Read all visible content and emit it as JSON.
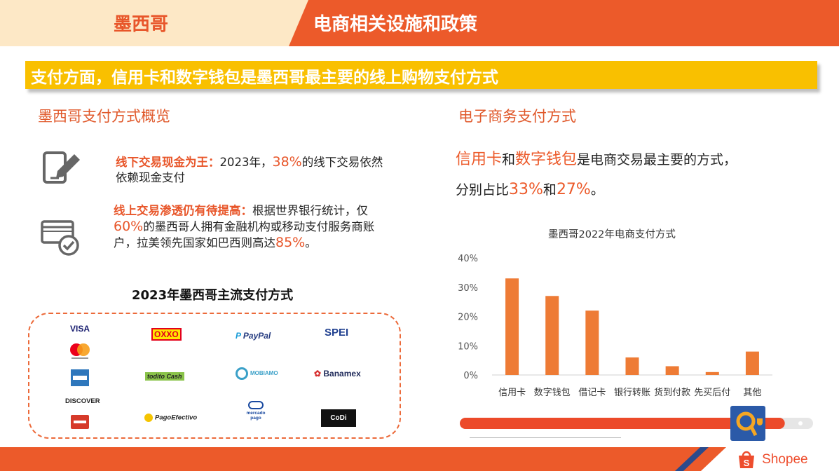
{
  "header": {
    "country": "墨西哥",
    "title": "电商相关设施和政策"
  },
  "banner": "支付方面，信用卡和数字钱包是墨西哥最主要的线上购物支付方式",
  "left": {
    "section_title": "墨西哥支付方式概览",
    "item1": {
      "highlight": "线下交易现金为王：",
      "t1": "2023年，",
      "num": "38%",
      "t2": "的线下交易依然依赖现金支付"
    },
    "item2": {
      "highlight": "线上交易渗透仍有待提高：",
      "t1": "根据世界银行统计，仅",
      "num1": "60%",
      "t2": "的墨西哥人拥有金融机构或移动支付服务商账户，拉美领先国家如巴西则高达",
      "num2": "85%",
      "t3": "。"
    },
    "methods_title": "2023年墨西哥主流支付方式",
    "logos": {
      "visa": "VISA",
      "oxxo": "OXXO",
      "paypal": "PayPal",
      "spei": "SPEI",
      "todito": "todito Cash",
      "mobiamo": "MOBIAMO",
      "banamex": "Banamex",
      "discover": "DISCOVER",
      "pagoefectivo": "PagoEfectivo",
      "mercado": "mercado pago",
      "codi": "CoDi"
    }
  },
  "right": {
    "section_title": "电子商务支付方式",
    "line1": {
      "a": "信用卡",
      "b": "和",
      "c": "数字钱包",
      "d": "是电商交易最主要的方式，"
    },
    "line2": {
      "a": "分别占比",
      "b": "33%",
      "c": "和",
      "d": "27%",
      "e": "。"
    }
  },
  "chart_data": {
    "type": "bar",
    "title": "墨西哥2022年电商支付方式",
    "categories": [
      "信用卡",
      "数字钱包",
      "借记卡",
      "银行转账",
      "货到付款",
      "先买后付",
      "其他"
    ],
    "values": [
      33,
      27,
      22,
      6,
      3,
      1,
      8
    ],
    "yticks": [
      "0%",
      "10%",
      "20%",
      "30%",
      "40%"
    ],
    "ylim": [
      0,
      40
    ],
    "bar_color": "#ee7b35"
  },
  "brand": {
    "name": "Shopee"
  },
  "colors": {
    "orange": "#ec5a2a",
    "yellow": "#f9c000",
    "peach": "#fde8c6",
    "blue": "#2b4a8b"
  },
  "progress": {
    "fraction": 0.92
  }
}
